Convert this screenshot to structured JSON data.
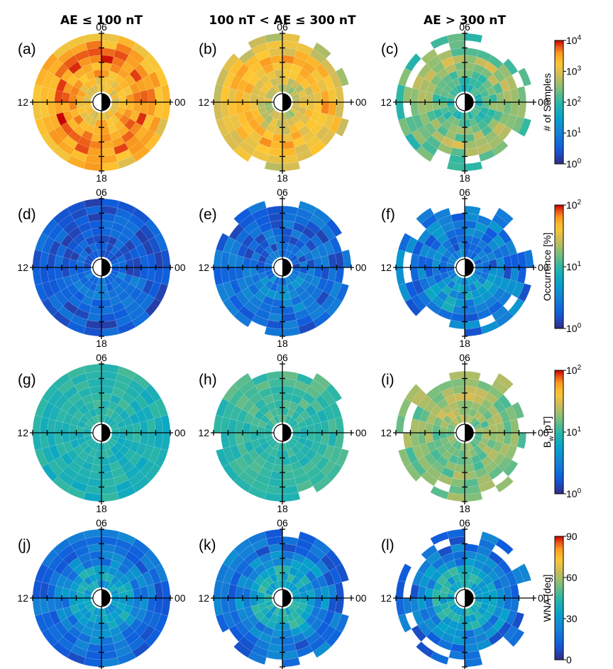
{
  "chart_data": {
    "type": "heatmap",
    "projection": "polar (MLT x L-shell dial plot)",
    "columns": [
      {
        "title": "AE ≤ 100 nT"
      },
      {
        "title": "100 nT < AE ≤ 300 nT"
      },
      {
        "title": "AE > 300 nT"
      }
    ],
    "mlt_labels": {
      "top": "06",
      "left": "12",
      "right": "00",
      "bottom": "18"
    },
    "rows": [
      {
        "quantity": "samples",
        "colorbar": {
          "label": "# of Samples",
          "scale": "log",
          "ticks": [
            {
              "base": "10",
              "exp": "4"
            },
            {
              "base": "10",
              "exp": "3"
            },
            {
              "base": "10",
              "exp": "2"
            },
            {
              "base": "10",
              "exp": "1"
            },
            {
              "base": "10",
              "exp": "0"
            }
          ],
          "range": [
            1,
            10000
          ]
        },
        "panels": [
          {
            "label": "(a)",
            "column": "AE ≤ 100 nT",
            "typical_range": [
              500,
              10000
            ]
          },
          {
            "label": "(b)",
            "column": "100 nT < AE ≤ 300 nT",
            "typical_range": [
              200,
              5000
            ]
          },
          {
            "label": "(c)",
            "column": "AE > 300 nT",
            "typical_range": [
              30,
              1000
            ]
          }
        ]
      },
      {
        "quantity": "occurrence",
        "colorbar": {
          "label": "Occurrence [%]",
          "scale": "log",
          "ticks": [
            {
              "base": "10",
              "exp": "2"
            },
            {
              "base": "10",
              "exp": "1"
            },
            {
              "base": "10",
              "exp": "0"
            }
          ],
          "range": [
            1,
            100
          ]
        },
        "panels": [
          {
            "label": "(d)",
            "column": "AE ≤ 100 nT",
            "typical_range": [
              1,
              5
            ]
          },
          {
            "label": "(e)",
            "column": "100 nT < AE ≤ 300 nT",
            "typical_range": [
              1,
              8
            ]
          },
          {
            "label": "(f)",
            "column": "AE > 300 nT",
            "typical_range": [
              1,
              15
            ]
          }
        ]
      },
      {
        "quantity": "amplitude",
        "colorbar": {
          "label": "B",
          "label_sub": "w",
          "label_unit": " [pT]",
          "scale": "log",
          "ticks": [
            {
              "base": "10",
              "exp": "2"
            },
            {
              "base": "10",
              "exp": "1"
            },
            {
              "base": "10",
              "exp": "0"
            }
          ],
          "range": [
            1,
            100
          ]
        },
        "panels": [
          {
            "label": "(g)",
            "column": "AE ≤ 100 nT",
            "typical_range": [
              5,
              15
            ]
          },
          {
            "label": "(h)",
            "column": "100 nT < AE ≤ 300 nT",
            "typical_range": [
              6,
              18
            ]
          },
          {
            "label": "(i)",
            "column": "AE > 300 nT",
            "typical_range": [
              8,
              40
            ]
          }
        ]
      },
      {
        "quantity": "wna",
        "colorbar": {
          "label": "WNA [deg]",
          "scale": "linear",
          "ticks": [
            {
              "base": "90"
            },
            {
              "base": "60"
            },
            {
              "base": "30"
            },
            {
              "base": "0"
            }
          ],
          "range": [
            0,
            90
          ]
        },
        "panels": [
          {
            "label": "(j)",
            "column": "AE ≤ 100 nT",
            "typical_range": [
              5,
              45
            ]
          },
          {
            "label": "(k)",
            "column": "100 nT < AE ≤ 300 nT",
            "typical_range": [
              5,
              50
            ]
          },
          {
            "label": "(l)",
            "column": "AE > 300 nT",
            "typical_range": [
              5,
              50
            ]
          }
        ]
      }
    ],
    "colormap": "parula-like (dark blue → cyan → yellow → red)",
    "grid": false,
    "legend": "colorbar at right of each row"
  }
}
